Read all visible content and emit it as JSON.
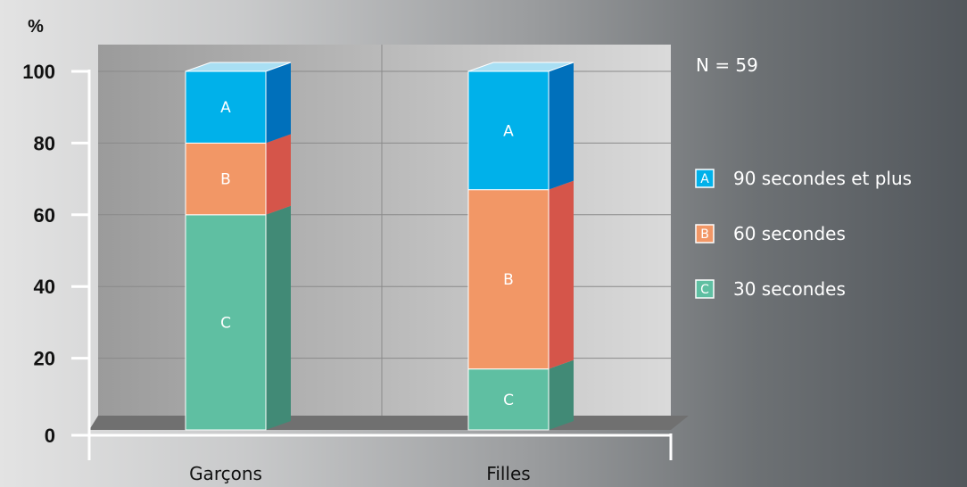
{
  "chart_data": {
    "type": "bar",
    "stacked": true,
    "categories": [
      "Garçons",
      "Filles"
    ],
    "series": [
      {
        "key": "C",
        "name": "30 secondes",
        "values": [
          60,
          17
        ],
        "color": "#5fbfa2",
        "side_color": "#418a76"
      },
      {
        "key": "B",
        "name": "60 secondes",
        "values": [
          20,
          50
        ],
        "color": "#f29766",
        "side_color": "#d5554a"
      },
      {
        "key": "A",
        "name": "90 secondes et plus",
        "values": [
          20,
          33
        ],
        "color": "#00b1ea",
        "side_color": "#0070bb"
      }
    ],
    "ylabel": "%",
    "ylim": [
      0,
      100
    ],
    "yticks": [
      0,
      20,
      40,
      60,
      80,
      100
    ],
    "grid": true,
    "legend_position": "right",
    "annotation": "N = 59"
  }
}
